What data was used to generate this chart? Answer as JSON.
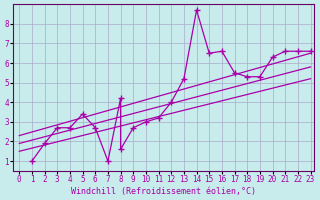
{
  "xlabel": "Windchill (Refroidissement éolien,°C)",
  "bg_color": "#c8ecec",
  "line_color": "#aa00aa",
  "grid_color": "#aaaacc",
  "xlim": [
    -0.5,
    23.3
  ],
  "ylim": [
    0.5,
    9.0
  ],
  "xticks": [
    0,
    1,
    2,
    3,
    4,
    5,
    6,
    7,
    8,
    9,
    10,
    11,
    12,
    13,
    14,
    15,
    16,
    17,
    18,
    19,
    20,
    21,
    22,
    23
  ],
  "yticks": [
    1,
    2,
    3,
    4,
    5,
    6,
    7,
    8
  ],
  "line1_x": [
    1,
    2,
    3,
    4,
    5,
    6,
    7,
    8,
    8,
    9,
    10,
    11,
    12,
    13,
    14,
    15,
    16,
    17,
    18,
    19,
    20,
    21,
    22,
    23
  ],
  "line1_y": [
    1.0,
    1.9,
    2.7,
    2.7,
    3.4,
    2.7,
    1.0,
    4.2,
    1.6,
    2.7,
    3.0,
    3.2,
    4.0,
    5.2,
    8.7,
    6.5,
    6.6,
    5.5,
    5.3,
    5.3,
    6.3,
    6.6,
    6.6,
    6.6
  ],
  "line2_x": [
    0,
    23
  ],
  "line2_y": [
    1.5,
    5.2
  ],
  "line3_x": [
    0,
    23
  ],
  "line3_y": [
    1.9,
    5.8
  ],
  "line4_x": [
    0,
    23
  ],
  "line4_y": [
    2.3,
    6.5
  ]
}
